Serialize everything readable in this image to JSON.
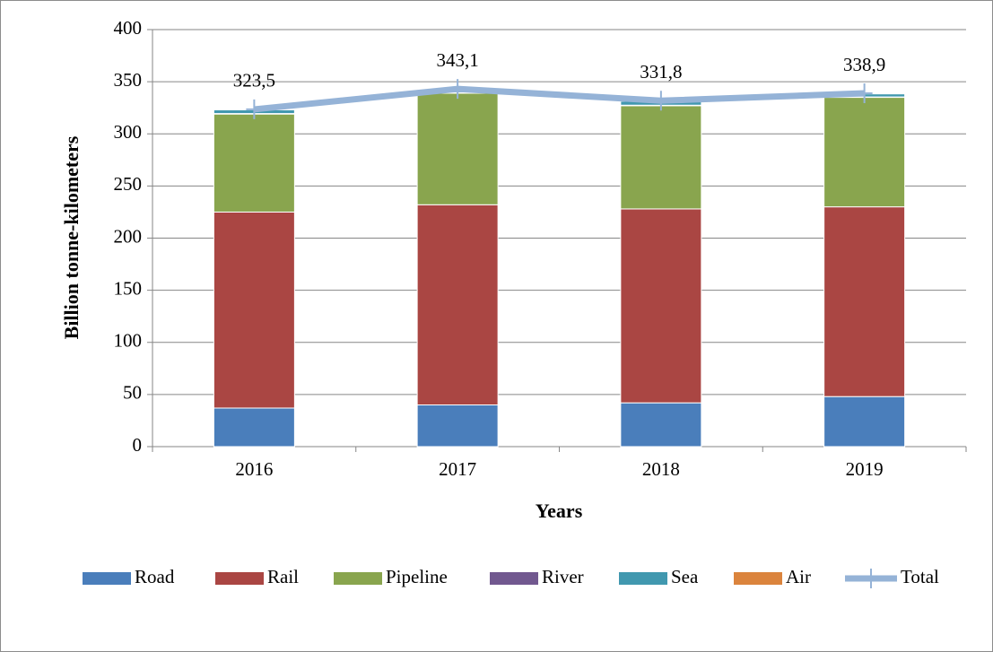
{
  "chart_data": {
    "type": "bar",
    "stacked": true,
    "x_label": "Years",
    "y_label": "Billion tonne-kilometers",
    "categories": [
      "2016",
      "2017",
      "2018",
      "2019"
    ],
    "series": [
      {
        "name": "Road",
        "color": "#4a7ebb",
        "values": [
          37,
          40,
          42,
          48
        ]
      },
      {
        "name": "Rail",
        "color": "#aa4643",
        "values": [
          188,
          192,
          186,
          182
        ]
      },
      {
        "name": "Pipeline",
        "color": "#89a54e",
        "values": [
          94,
          107,
          99,
          105
        ]
      },
      {
        "name": "River",
        "color": "#71588f",
        "values": [
          0.5,
          0.5,
          0.5,
          0.4
        ]
      },
      {
        "name": "Sea",
        "color": "#4198af",
        "values": [
          3.5,
          3,
          3.8,
          3
        ]
      },
      {
        "name": "Air",
        "color": "#db843d",
        "values": [
          0.5,
          0.6,
          0.5,
          0.5
        ]
      },
      {
        "name": "Total",
        "type": "line",
        "color": "#95b3d7",
        "values": [
          323.5,
          343.1,
          331.8,
          338.9
        ],
        "value_labels": [
          "323,5",
          "343,1",
          "331,8",
          "338,9"
        ]
      }
    ],
    "ylim": [
      0,
      400
    ],
    "yticks": [
      0,
      50,
      100,
      150,
      200,
      250,
      300,
      350,
      400
    ],
    "grid": true,
    "legend": "bottom"
  }
}
